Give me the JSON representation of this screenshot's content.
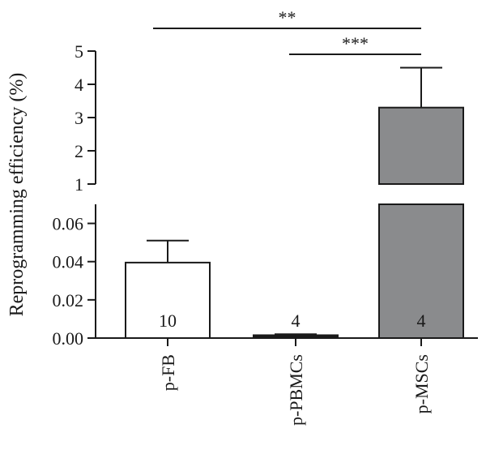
{
  "chart_data": {
    "type": "bar",
    "ylabel": "Reprogramming efficiency (%)",
    "categories": [
      "p-FB",
      "p-PBMCs",
      "p-MSCs"
    ],
    "values": [
      0.0395,
      0.0015,
      3.3
    ],
    "errors": [
      0.0115,
      0.0005,
      1.2
    ],
    "n": [
      "10",
      "4",
      "4"
    ],
    "bar_colors": [
      "#ffffff",
      "#1a1a1a",
      "#8a8b8d"
    ],
    "broken_axis": true,
    "lower_segment": {
      "ylim": [
        0,
        0.07
      ],
      "ticks": [
        "0.00",
        "0.02",
        "0.04",
        "0.06"
      ],
      "tick_values": [
        0,
        0.02,
        0.04,
        0.06
      ]
    },
    "upper_segment": {
      "ylim": [
        1,
        5
      ],
      "ticks": [
        "1",
        "2",
        "3",
        "4",
        "5"
      ],
      "tick_values": [
        1,
        2,
        3,
        4,
        5
      ]
    },
    "significance": [
      {
        "from": "p-FB",
        "to": "p-MSCs",
        "label": "**"
      },
      {
        "from": "p-PBMCs",
        "to": "p-MSCs",
        "label": "***"
      }
    ],
    "grid": false,
    "legend": "none"
  }
}
